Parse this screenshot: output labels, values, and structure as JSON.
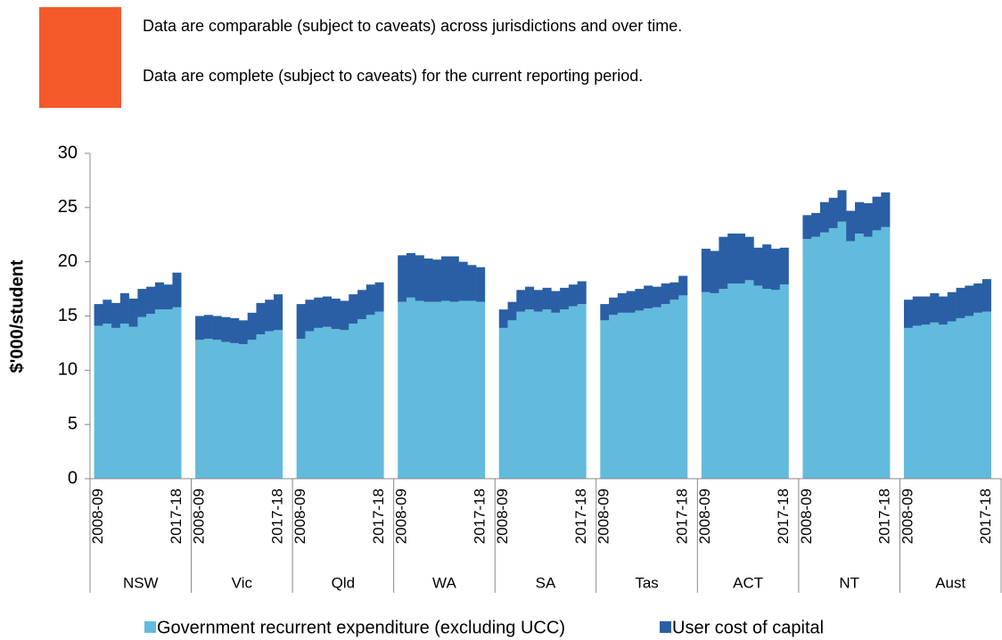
{
  "notes": [
    "Data are comparable (subject to caveats) across jurisdictions and over time.",
    "Data are complete (subject to caveats) for the current reporting period."
  ],
  "chart_data": {
    "type": "stacked_bar",
    "y_label": "$'000/student",
    "groups": [
      "NSW",
      "Vic",
      "Qld",
      "WA",
      "SA",
      "Tas",
      "ACT",
      "NT",
      "Aust"
    ],
    "categories": [
      "2008-09",
      null,
      null,
      null,
      null,
      null,
      null,
      null,
      null,
      "2017-18",
      "2008-09",
      null,
      null,
      null,
      null,
      null,
      null,
      null,
      null,
      "2017-18",
      "2008-09",
      null,
      null,
      null,
      null,
      null,
      null,
      null,
      null,
      "2017-18",
      "2008-09",
      null,
      null,
      null,
      null,
      null,
      null,
      null,
      null,
      "2017-18",
      "2008-09",
      null,
      null,
      null,
      null,
      null,
      null,
      null,
      null,
      "2017-18",
      "2008-09",
      null,
      null,
      null,
      null,
      null,
      null,
      null,
      null,
      "2017-18",
      "2008-09",
      null,
      null,
      null,
      null,
      null,
      null,
      null,
      null,
      "2017-18",
      "2008-09",
      null,
      null,
      null,
      null,
      null,
      null,
      null,
      null,
      "2017-18",
      "2008-09",
      null,
      null,
      null,
      null,
      null,
      null,
      null,
      null,
      "2017-18"
    ],
    "series": [
      {
        "name": "Government recurrent expenditure (excluding UCC)",
        "color": "#62bbdc",
        "values": [
          14.1,
          14.3,
          13.9,
          14.3,
          14.0,
          14.9,
          15.2,
          15.6,
          15.6,
          15.8,
          12.8,
          12.9,
          12.8,
          12.6,
          12.5,
          12.4,
          12.8,
          13.3,
          13.6,
          13.7,
          12.9,
          13.6,
          13.9,
          14.0,
          13.8,
          13.7,
          14.3,
          14.7,
          15.1,
          15.4,
          16.3,
          16.7,
          16.4,
          16.3,
          16.3,
          16.4,
          16.3,
          16.4,
          16.4,
          16.3,
          13.9,
          14.6,
          15.4,
          15.6,
          15.4,
          15.6,
          15.3,
          15.6,
          15.9,
          16.1,
          14.6,
          15.1,
          15.3,
          15.3,
          15.5,
          15.7,
          15.8,
          16.1,
          16.5,
          16.9,
          17.2,
          17.1,
          17.5,
          18.0,
          18.0,
          18.3,
          17.8,
          17.5,
          17.4,
          17.9,
          22.1,
          22.3,
          22.7,
          23.1,
          23.7,
          21.9,
          22.6,
          22.3,
          22.9,
          23.2,
          13.9,
          14.1,
          14.2,
          14.4,
          14.2,
          14.5,
          14.8,
          15.0,
          15.3,
          15.4
        ]
      },
      {
        "name": "User cost of capital",
        "color": "#2a5fa5",
        "values": [
          2.0,
          2.2,
          2.3,
          2.8,
          2.6,
          2.6,
          2.5,
          2.5,
          2.3,
          3.2,
          2.2,
          2.2,
          2.2,
          2.3,
          2.3,
          2.2,
          2.5,
          2.9,
          2.9,
          3.3,
          3.2,
          2.9,
          2.8,
          2.8,
          2.8,
          2.7,
          2.7,
          2.7,
          2.8,
          2.7,
          4.3,
          4.1,
          4.2,
          4.0,
          3.9,
          4.1,
          4.2,
          3.6,
          3.3,
          3.2,
          1.7,
          1.7,
          2.0,
          2.1,
          2.0,
          2.0,
          2.0,
          2.0,
          2.0,
          2.1,
          1.5,
          1.6,
          1.8,
          2.0,
          2.0,
          2.1,
          1.9,
          1.9,
          1.6,
          1.8,
          4.0,
          3.9,
          4.8,
          4.6,
          4.6,
          4.0,
          3.5,
          4.1,
          3.8,
          3.4,
          2.2,
          2.2,
          2.8,
          2.8,
          2.9,
          2.8,
          2.9,
          3.1,
          3.1,
          3.2,
          2.6,
          2.7,
          2.6,
          2.7,
          2.6,
          2.7,
          2.8,
          2.8,
          2.7,
          3.0
        ]
      }
    ],
    "ylim": [
      0,
      30
    ],
    "yticks": [
      0,
      5,
      10,
      15,
      20,
      25,
      30
    ],
    "grid": false
  }
}
